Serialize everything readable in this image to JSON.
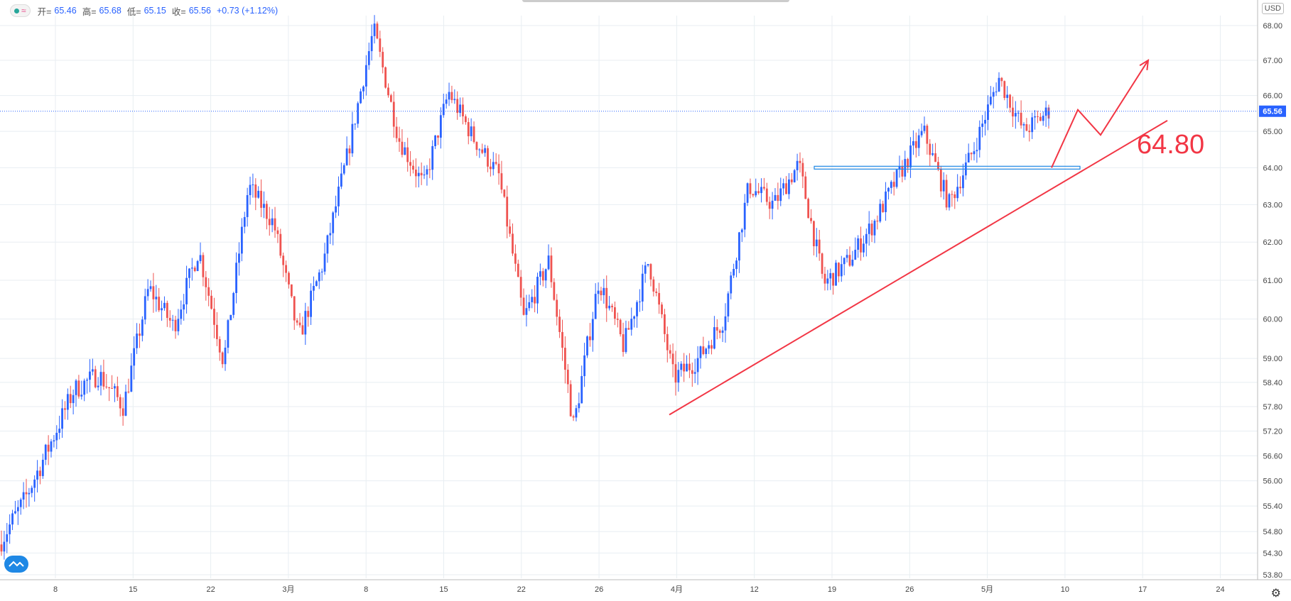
{
  "ohlc": {
    "open_label": "开=",
    "open": "65.46",
    "high_label": "高=",
    "high": "65.68",
    "low_label": "低=",
    "low": "65.15",
    "close_label": "收=",
    "close": "65.56",
    "change": "+0.73 (+1.12%)",
    "status_icon": "status-dot-icon",
    "wave_icon": "≈"
  },
  "currency": "USD",
  "colors": {
    "up": "#2962ff",
    "down": "#ef5350",
    "grid": "#e8eef2",
    "annotation": "#f23645",
    "level_line": "#1e88e5",
    "price_line": "#2962ff"
  },
  "chart_data": {
    "type": "candlestick",
    "title": "",
    "ylim": [
      53.8,
      68.0
    ],
    "y_scale": "log",
    "last_price": "65.56",
    "y_ticks": [
      "68.00",
      "67.00",
      "66.00",
      "65.00",
      "64.00",
      "63.00",
      "62.00",
      "61.00",
      "60.00",
      "59.00",
      "58.40",
      "57.80",
      "57.20",
      "56.60",
      "56.00",
      "55.40",
      "54.80",
      "54.30",
      "53.80"
    ],
    "x_ticks": [
      "8",
      "15",
      "22",
      "3月",
      "8",
      "15",
      "22",
      "26",
      "4月",
      "12",
      "19",
      "26",
      "5月",
      "10",
      "17",
      "24"
    ],
    "annotations": {
      "target_label": "64.80",
      "horizontal_level": 64.0,
      "trendline": [
        57.6,
        65.3
      ],
      "projected_path": [
        64.0,
        65.6,
        64.9,
        67.0
      ]
    },
    "series_keypoints": [
      54.5,
      55.5,
      56.8,
      58.2,
      58.6,
      57.8,
      60.8,
      59.8,
      61.8,
      58.9,
      63.5,
      62.5,
      59.5,
      61.5,
      64.5,
      67.9,
      64.8,
      63.5,
      66.1,
      64.8,
      63.8,
      60.0,
      61.5,
      57.3,
      61.0,
      59.3,
      61.5,
      58.5,
      59.0,
      60.0,
      63.5,
      63.0,
      64.1,
      60.9,
      61.5,
      62.5,
      63.8,
      65.0,
      63.0,
      64.5,
      66.5,
      65.0,
      65.56
    ]
  }
}
